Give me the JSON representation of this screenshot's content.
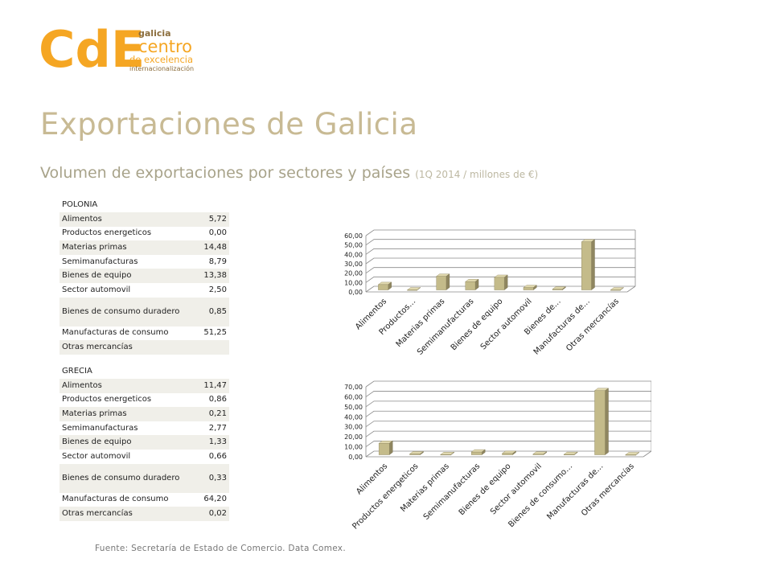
{
  "logo": {
    "letters": "CdE",
    "region": "galicia",
    "line1": "centro",
    "line2": "de excelencia",
    "line3": "internacionalización",
    "brand_orange": "#f5a623",
    "brand_brown": "#8b6d3c"
  },
  "header": {
    "title": "Exportaciones de Galicia",
    "subtitle": "Volumen de exportaciones por sectores y países",
    "subtitle_note": "(1Q 2014 / millones de €)"
  },
  "tables": [
    {
      "country": "POLONIA",
      "rows": [
        {
          "label": "Alimentos",
          "value": "5,72"
        },
        {
          "label": "Productos energeticos",
          "value": "0,00"
        },
        {
          "label": "Materias primas",
          "value": "14,48"
        },
        {
          "label": "Semimanufacturas",
          "value": "8,79"
        },
        {
          "label": "Bienes de equipo",
          "value": "13,38"
        },
        {
          "label": "Sector automovil",
          "value": "2,50"
        },
        {
          "label": "Bienes de consumo duradero",
          "value": "0,85"
        },
        {
          "label": "Manufacturas de consumo",
          "value": "51,25"
        },
        {
          "label": "Otras mercancías",
          "value": ""
        }
      ]
    },
    {
      "country": "GRECIA",
      "rows": [
        {
          "label": "Alimentos",
          "value": "11,47"
        },
        {
          "label": "Productos energeticos",
          "value": "0,86"
        },
        {
          "label": "Materias primas",
          "value": "0,21"
        },
        {
          "label": "Semimanufacturas",
          "value": "2,77"
        },
        {
          "label": "Bienes de equipo",
          "value": "1,33"
        },
        {
          "label": "Sector automovil",
          "value": "0,66"
        },
        {
          "label": "Bienes de consumo duradero",
          "value": "0,33"
        },
        {
          "label": "Manufacturas de consumo",
          "value": "64,20"
        },
        {
          "label": "Otras mercancías",
          "value": "0,02"
        }
      ]
    }
  ],
  "chart_data": [
    {
      "type": "bar",
      "categories": [
        "Alimentos",
        "Productos…",
        "Materias primas",
        "Semimanufacturas",
        "Bienes de equipo",
        "Sector automovil",
        "Bienes de…",
        "Manufacturas de…",
        "Otras mercancías"
      ],
      "values": [
        5.72,
        0.0,
        14.48,
        8.79,
        13.38,
        2.5,
        0.85,
        51.25,
        0
      ],
      "ylim": [
        0,
        60
      ],
      "ticks": [
        "0,00",
        "10,00",
        "20,00",
        "30,00",
        "40,00",
        "50,00",
        "60,00"
      ],
      "grid": true,
      "bar_color": "#c4bb8a"
    },
    {
      "type": "bar",
      "categories": [
        "Alimentos",
        "Productos energeticos",
        "Materias primas",
        "Semimanufacturas",
        "Bienes de equipo",
        "Sector automovil",
        "Bienes de consumo…",
        "Manufacturas de…",
        "Otras mercancías"
      ],
      "values": [
        11.47,
        0.86,
        0.21,
        2.77,
        1.33,
        0.66,
        0.33,
        64.2,
        0.02
      ],
      "ylim": [
        0,
        70
      ],
      "ticks": [
        "0,00",
        "10,00",
        "20,00",
        "30,00",
        "40,00",
        "50,00",
        "60,00",
        "70,00"
      ],
      "grid": true,
      "bar_color": "#c4bb8a"
    }
  ],
  "footer": {
    "source": "Fuente: Secretaría de Estado de Comercio. Data Comex."
  }
}
